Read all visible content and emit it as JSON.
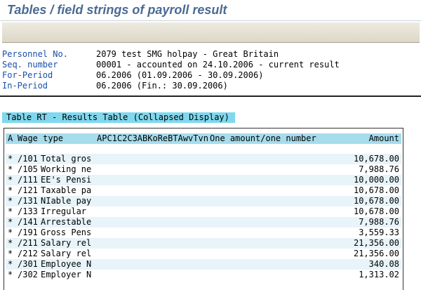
{
  "page_title": "Tables / field strings of payroll result",
  "header": {
    "rows": [
      {
        "label": "Personnel No.",
        "value": "2079 test SMG holpay - Great Britain"
      },
      {
        "label": "Seq. number",
        "value": "00001 - accounted on 24.10.2006 - current result"
      },
      {
        "label": "For-Period",
        "value": "06.2006 (01.09.2006 - 30.09.2006)"
      },
      {
        "label": "In-Period",
        "value": "06.2006 (Fin.: 30.09.2006)"
      }
    ]
  },
  "table_section_title": "Table RT - Results Table (Collapsed Display)",
  "table": {
    "columns": {
      "a": "A",
      "wage_type": "Wage type",
      "codes": "APC1C2C3ABKoReBTAwvTvn",
      "desc": "One amount/one number",
      "amount": "Amount"
    },
    "rows": [
      {
        "mark": "*",
        "wage_type": "/101",
        "name": "Total gros",
        "amount": "10,678.00"
      },
      {
        "mark": "*",
        "wage_type": "/105",
        "name": "Working ne",
        "amount": "7,988.76"
      },
      {
        "mark": "*",
        "wage_type": "/111",
        "name": "EE's Pensi",
        "amount": "10,000.00"
      },
      {
        "mark": "*",
        "wage_type": "/121",
        "name": "Taxable pa",
        "amount": "10,678.00"
      },
      {
        "mark": "*",
        "wage_type": "/131",
        "name": "NIable pay",
        "amount": "10,678.00"
      },
      {
        "mark": "*",
        "wage_type": "/133",
        "name": "Irregular",
        "amount": "10,678.00"
      },
      {
        "mark": "*",
        "wage_type": "/141",
        "name": "Arrestable",
        "amount": "7,988.76"
      },
      {
        "mark": "*",
        "wage_type": "/191",
        "name": "Gross Pens",
        "amount": "3,559.33"
      },
      {
        "mark": "*",
        "wage_type": "/211",
        "name": "Salary rel",
        "amount": "21,356.00"
      },
      {
        "mark": "*",
        "wage_type": "/212",
        "name": "Salary rel",
        "amount": "21,356.00"
      },
      {
        "mark": "*",
        "wage_type": "/301",
        "name": "Employee N",
        "amount": "340.08"
      },
      {
        "mark": "*",
        "wage_type": "/302",
        "name": "Employer N",
        "amount": "1,313.02"
      }
    ]
  },
  "colors": {
    "title": "#4b6b94",
    "label": "#1a4fa8",
    "section_highlight": "#7fd8ee",
    "table_header": "#a6dcec",
    "row_alt": "#e7f4fa"
  }
}
